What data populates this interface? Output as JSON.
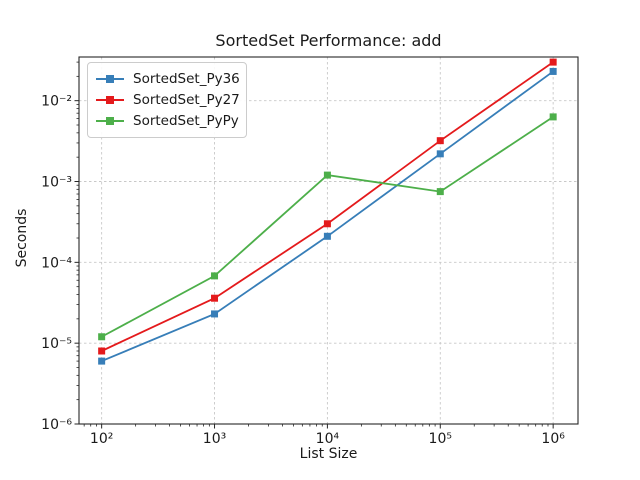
{
  "figure": {
    "background": "#ffffff",
    "text_color": "#1a1a1a",
    "grid_color": "#c8c8c8",
    "spine_color": "#262626"
  },
  "chart_data": {
    "type": "line",
    "title": "SortedSet Performance: add",
    "xlabel": "List Size",
    "ylabel": "Seconds",
    "x_scale": "log",
    "y_scale": "log",
    "grid": true,
    "legend_position": "upper left",
    "marker": "square",
    "x": [
      100,
      1000,
      10000,
      100000,
      1000000
    ],
    "series": [
      {
        "name": "SortedSet_Py36",
        "color": "#377eb8",
        "values": [
          6e-06,
          2.3e-05,
          0.00021,
          0.0022,
          0.023
        ]
      },
      {
        "name": "SortedSet_Py27",
        "color": "#e41a1c",
        "values": [
          8e-06,
          3.6e-05,
          0.0003,
          0.0032,
          0.03
        ]
      },
      {
        "name": "SortedSet_PyPy",
        "color": "#4daf4a",
        "values": [
          1.2e-05,
          6.8e-05,
          0.0012,
          0.00075,
          0.0063
        ]
      }
    ],
    "xlim": [
      63,
      1660000
    ],
    "ylim": [
      1e-06,
      0.0347
    ],
    "x_tick_exponents": [
      2,
      3,
      4,
      5,
      6
    ],
    "y_tick_exponents": [
      -6,
      -5,
      -4,
      -3,
      -2
    ],
    "x_tick_labels": [
      "10²",
      "10³",
      "10⁴",
      "10⁵",
      "10⁶"
    ],
    "y_tick_labels": [
      "10⁻⁶",
      "10⁻⁵",
      "10⁻⁴",
      "10⁻³",
      "10⁻²"
    ]
  }
}
